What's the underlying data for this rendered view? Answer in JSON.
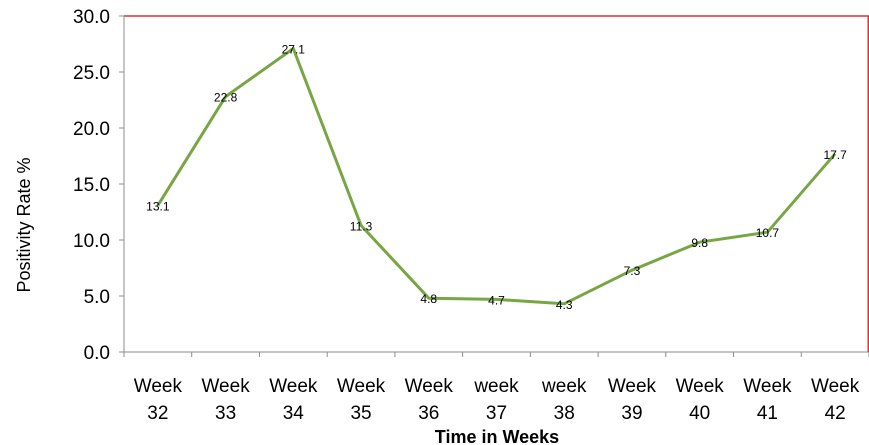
{
  "chart_data": {
    "type": "line",
    "categories": [
      [
        "Week",
        "32"
      ],
      [
        "Week",
        "33"
      ],
      [
        "Week",
        "34"
      ],
      [
        "Week",
        "35"
      ],
      [
        "Week",
        "36"
      ],
      [
        "week",
        "37"
      ],
      [
        "week",
        "38"
      ],
      [
        "Week",
        "39"
      ],
      [
        "Week",
        "40"
      ],
      [
        "Week",
        "41"
      ],
      [
        "Week",
        "42"
      ]
    ],
    "values": [
      13.1,
      22.8,
      27.1,
      11.3,
      4.8,
      4.7,
      4.3,
      7.3,
      9.8,
      10.7,
      17.7
    ],
    "data_labels": [
      "13.1",
      "22.8",
      "27.1",
      "11.3",
      "4.8",
      "4.7",
      "4.3",
      "7.3",
      "9.8",
      "10.7",
      "17.7"
    ],
    "yticks": [
      "0.0",
      "5.0",
      "10.0",
      "15.0",
      "20.0",
      "25.0",
      "30.0"
    ],
    "ylim": [
      0,
      30
    ],
    "xlabel": "Time in Weeks",
    "ylabel": "Positivity Rate %",
    "grid": false,
    "line_color": "#77a644",
    "plot_border_color": "#e03030",
    "axis_color": "#8c8c8c"
  }
}
